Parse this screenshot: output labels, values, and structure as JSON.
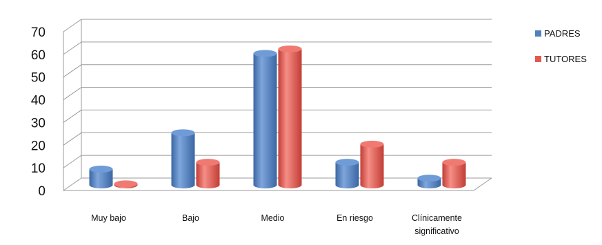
{
  "chart_data": {
    "type": "bar",
    "style": "3d-cylinder",
    "categories": [
      "Muy bajo",
      "Bajo",
      "Medio",
      "En riesgo",
      "Clínicamente significativo"
    ],
    "category_lines": [
      [
        "Muy bajo"
      ],
      [
        "Bajo"
      ],
      [
        "Medio"
      ],
      [
        "En riesgo"
      ],
      [
        "Clínicamente",
        "significativo"
      ]
    ],
    "series": [
      {
        "name": "PADRES",
        "values": [
          7,
          23,
          58,
          10,
          3
        ],
        "color": "#4f81bd"
      },
      {
        "name": "TUTORES",
        "values": [
          0.5,
          10,
          60,
          18,
          10
        ],
        "color": "#e05a50"
      }
    ],
    "yticks": [
      0,
      10,
      20,
      30,
      40,
      50,
      60,
      70
    ],
    "ylim": [
      0,
      70
    ],
    "grid": true,
    "legend_position": "right"
  }
}
